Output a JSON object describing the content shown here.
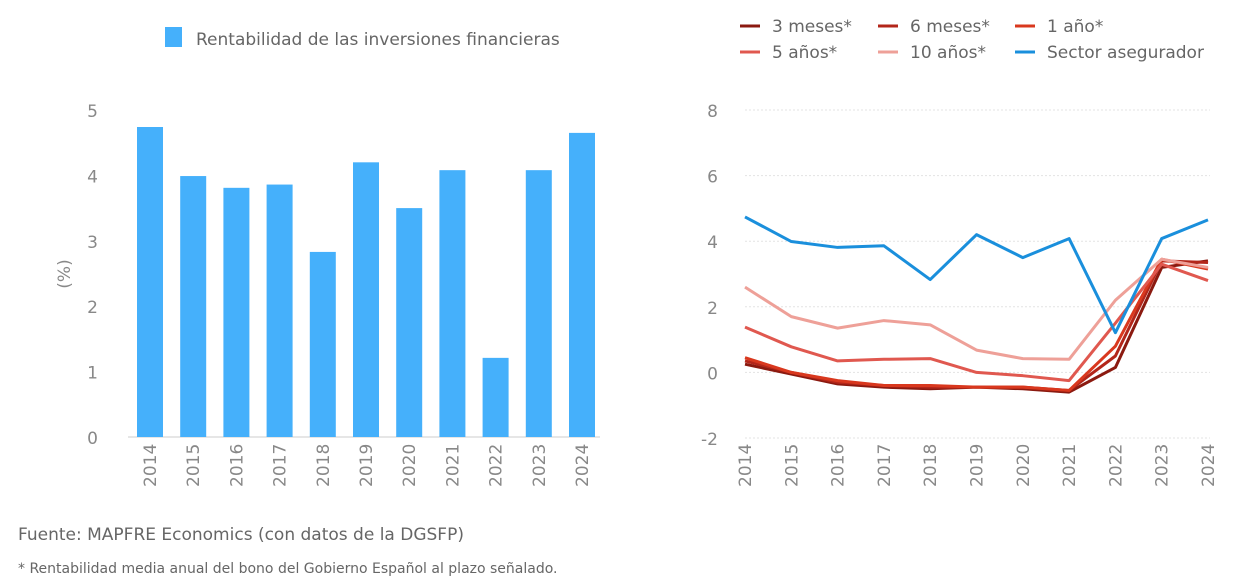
{
  "chart_data": [
    {
      "type": "bar",
      "title": "",
      "legend": [
        "Rentabilidad de las inversiones financieras"
      ],
      "legend_position": "top",
      "ylabel": "(%)",
      "ylim": [
        0,
        5
      ],
      "yticks": [
        0,
        1,
        2,
        3,
        4,
        5
      ],
      "categories": [
        "2014",
        "2015",
        "2016",
        "2017",
        "2018",
        "2019",
        "2020",
        "2021",
        "2022",
        "2023",
        "2024"
      ],
      "values": [
        4.74,
        3.99,
        3.81,
        3.86,
        2.83,
        4.2,
        3.5,
        4.08,
        1.21,
        4.08,
        4.65
      ],
      "color": "#45b0fb",
      "grid": false
    },
    {
      "type": "line",
      "ylim": [
        -2,
        8
      ],
      "yticks": [
        -2,
        0,
        2,
        4,
        6,
        8
      ],
      "grid": true,
      "legend_position": "top",
      "categories": [
        "2014",
        "2015",
        "2016",
        "2017",
        "2018",
        "2019",
        "2020",
        "2021",
        "2022",
        "2023",
        "2024"
      ],
      "series": [
        {
          "name": "3 meses*",
          "color": "#8b1a10",
          "values": [
            0.25,
            -0.05,
            -0.35,
            -0.45,
            -0.5,
            -0.45,
            -0.5,
            -0.6,
            0.15,
            3.2,
            3.4
          ]
        },
        {
          "name": "6 meses*",
          "color": "#b3261a",
          "values": [
            0.35,
            0.0,
            -0.3,
            -0.4,
            -0.45,
            -0.45,
            -0.45,
            -0.55,
            0.5,
            3.4,
            3.35
          ]
        },
        {
          "name": "1 año*",
          "color": "#d9381e",
          "values": [
            0.45,
            0.0,
            -0.25,
            -0.4,
            -0.4,
            -0.45,
            -0.45,
            -0.55,
            0.8,
            3.45,
            3.15
          ]
        },
        {
          "name": "5 años*",
          "color": "#e0584f",
          "values": [
            1.38,
            0.78,
            0.35,
            0.4,
            0.42,
            0.0,
            -0.1,
            -0.25,
            1.5,
            3.3,
            2.8
          ]
        },
        {
          "name": "10 años*",
          "color": "#eea098",
          "values": [
            2.6,
            1.7,
            1.35,
            1.58,
            1.45,
            0.68,
            0.42,
            0.4,
            2.2,
            3.45,
            3.2
          ]
        },
        {
          "name": "Sector asegurador",
          "color": "#1a8fdc",
          "values": [
            4.74,
            3.99,
            3.81,
            3.86,
            2.83,
            4.2,
            3.5,
            4.08,
            1.21,
            4.08,
            4.65
          ]
        }
      ]
    }
  ],
  "notes": {
    "source": "Fuente: MAPFRE Economics (con datos de la DGSFP)",
    "footnote": "* Rentabilidad media anual del bono del Gobierno Español al plazo señalado."
  }
}
